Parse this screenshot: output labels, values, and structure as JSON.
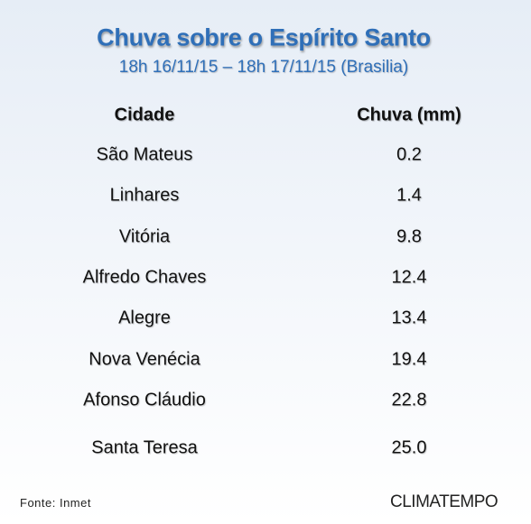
{
  "header": {
    "title": "Chuva sobre o Espírito Santo",
    "subtitle": "18h 16/11/15 – 18h 17/11/15 (Brasilia)"
  },
  "table": {
    "columns": [
      "Cidade",
      "Chuva (mm)"
    ],
    "rows": [
      [
        "São Mateus",
        "0.2"
      ],
      [
        "Linhares",
        "1.4"
      ],
      [
        "Vitória",
        "9.8"
      ],
      [
        "Alfredo Chaves",
        "12.4"
      ],
      [
        "Alegre",
        "13.4"
      ],
      [
        "Nova Venécia",
        "19.4"
      ],
      [
        "Afonso Cláudio",
        "22.8"
      ],
      [
        "Santa Teresa",
        "25.0"
      ]
    ]
  },
  "footer": {
    "source": "Fonte: Inmet",
    "logo": "CLIMATEMPO"
  }
}
